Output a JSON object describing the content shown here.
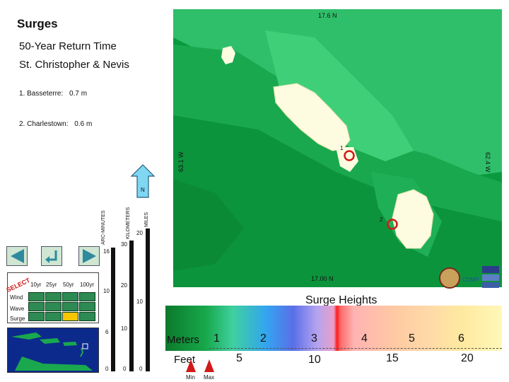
{
  "header": {
    "title": "Surges",
    "subtitle": "50-Year Return Time",
    "region": "St. Christopher & Nevis"
  },
  "stations": [
    {
      "label": "1. Basseterre:",
      "value": "0.7 m"
    },
    {
      "label": "2. Charlestown:",
      "value": "0.6 m"
    }
  ],
  "map": {
    "lat_top": "17.6 N",
    "lat_bottom": "17.00 N",
    "lon_left": "63.1 W",
    "lon_right": "62.4 W",
    "marker1": "1",
    "marker2": "2",
    "cdmp": "CDMP",
    "north": "N"
  },
  "scale": {
    "arc_minutes": "ARC-MINUTES",
    "kilometers": "KILOMETERS",
    "miles": "MILES",
    "arc_ticks": [
      "16",
      "10",
      "6",
      "0"
    ],
    "km_ticks": [
      "30",
      "20",
      "10",
      "0"
    ],
    "mi_ticks": [
      "20",
      "10",
      "0"
    ]
  },
  "selector": {
    "select_label": "SELECT",
    "columns": [
      "10yr",
      "25yr",
      "50yr",
      "100yr"
    ],
    "rows": [
      "Wind",
      "Wave",
      "Surge"
    ],
    "selected": "Surge 50yr"
  },
  "legend": {
    "title": "Surge Heights",
    "meters_label": "Meters",
    "feet_label": "Feet",
    "meters_ticks": [
      "1",
      "2",
      "3",
      "4",
      "5",
      "6"
    ],
    "feet_ticks": [
      "5",
      "10",
      "15",
      "20"
    ],
    "min_label": "Min",
    "max_label": "Max"
  },
  "colors": {
    "sea_deep": "#0a9a3e",
    "sea_light": "#6cc46a",
    "land": "#fdfbe0",
    "marker": "#d11a1a",
    "arrow": "#7fd7f2"
  }
}
